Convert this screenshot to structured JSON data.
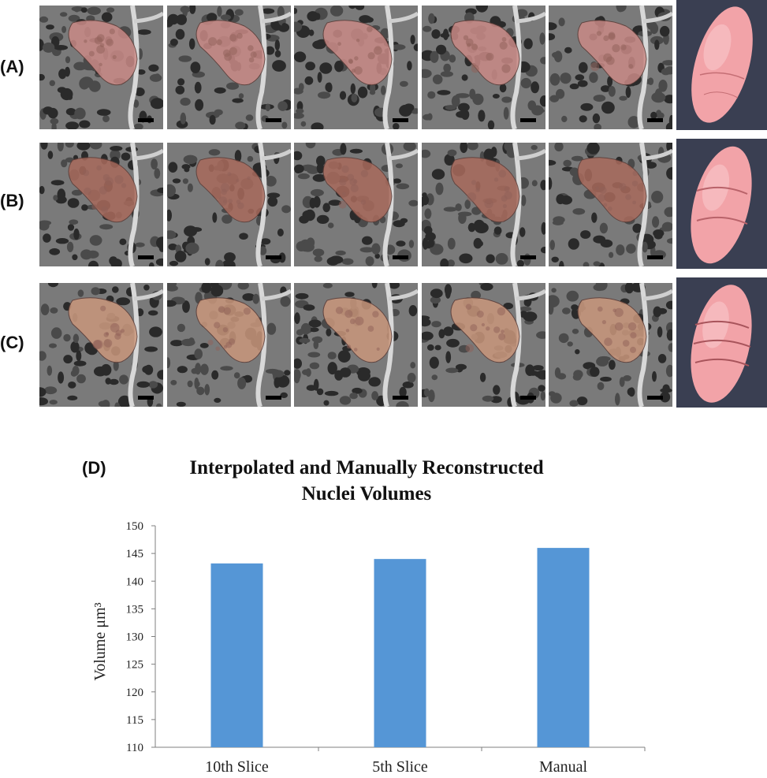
{
  "panels": {
    "row_labels": [
      "(A)",
      "(B)",
      "(C)"
    ],
    "chart_label": "(D)"
  },
  "colors": {
    "bar": "#5596d6",
    "nucleus_overlay": "#e8a89a",
    "render_surface": "#f2a3a8",
    "render_bg": "#3a3f52"
  },
  "chart_data": {
    "type": "bar",
    "title": "Interpolated and Manually Reconstructed",
    "subtitle": "Nuclei Volumes",
    "ylabel": "Volume μm³",
    "xlabel": "",
    "categories": [
      "10th Slice",
      "5th Slice",
      "Manual"
    ],
    "values": [
      143.2,
      144.0,
      146.0
    ],
    "ylim": [
      110,
      150
    ],
    "yticks": [
      110,
      115,
      120,
      125,
      130,
      135,
      140,
      145,
      150
    ],
    "grid": false
  }
}
